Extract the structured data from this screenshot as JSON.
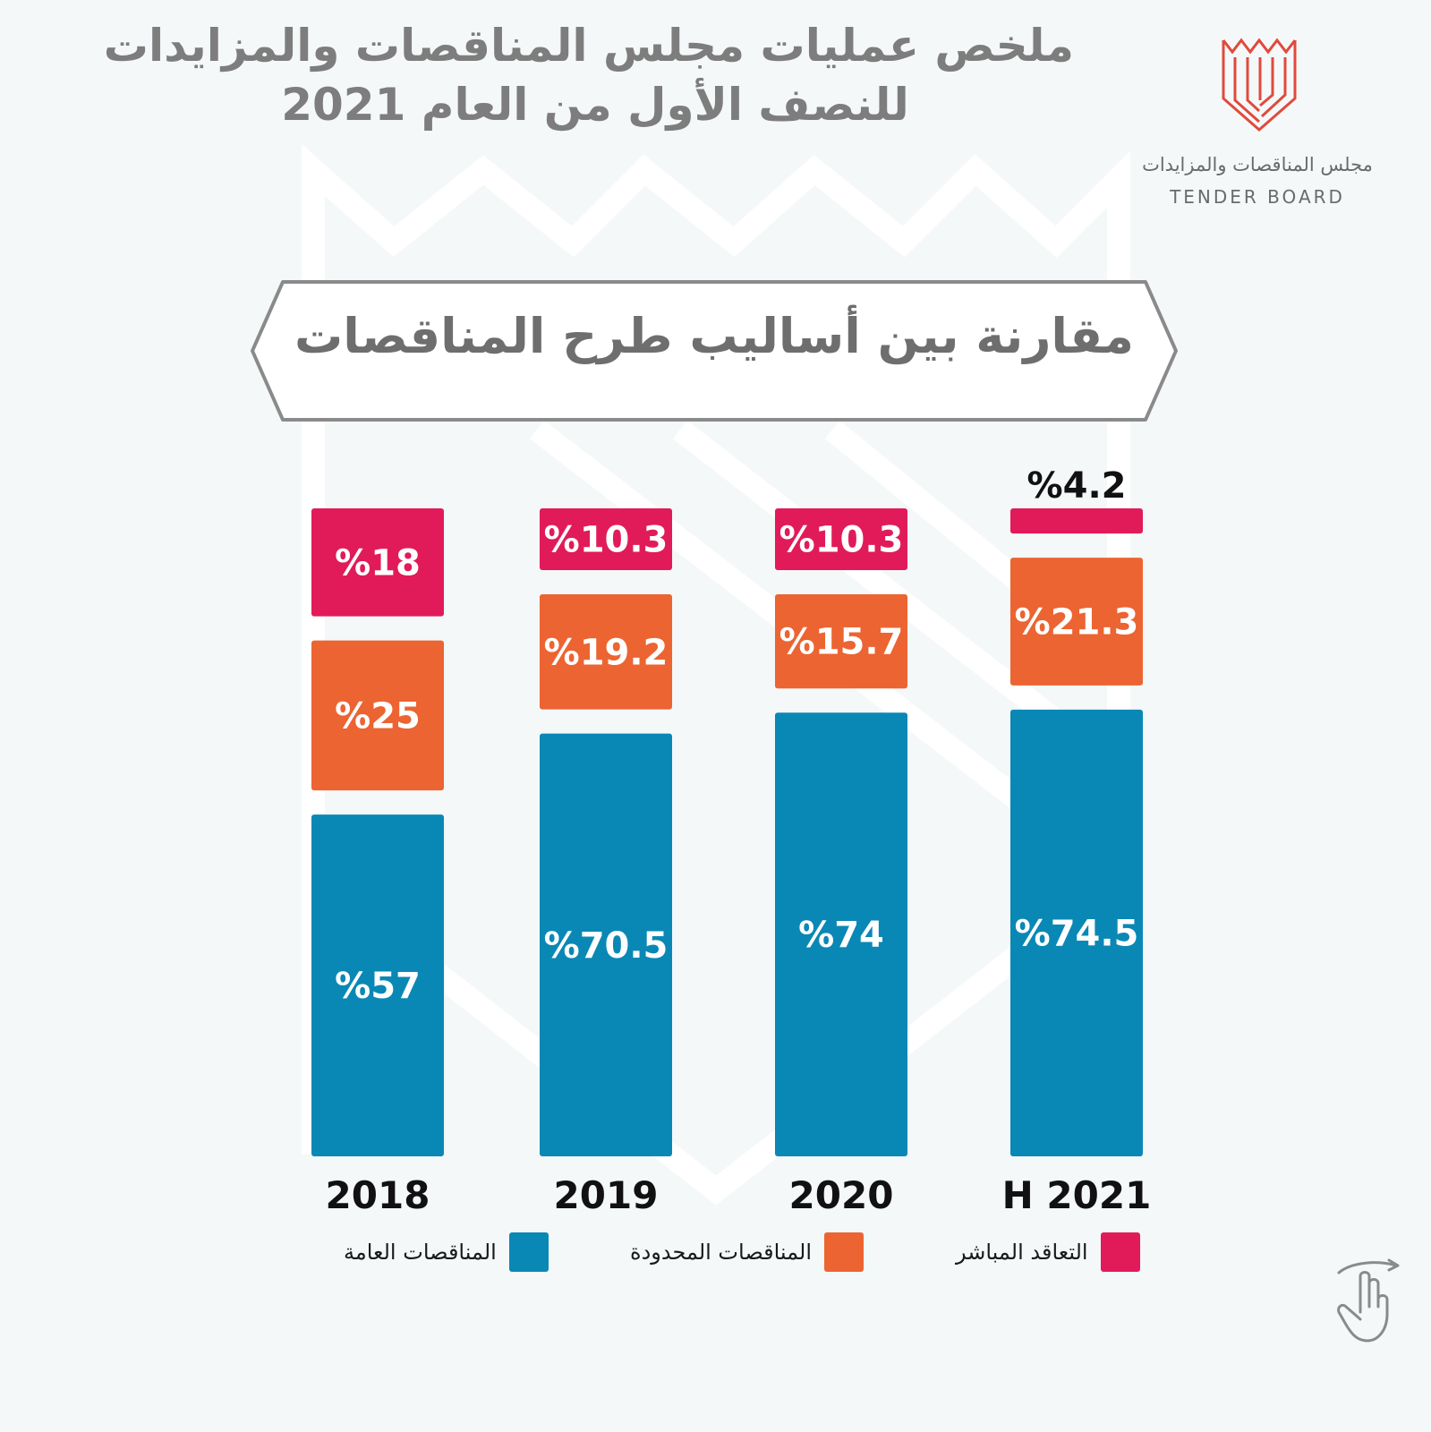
{
  "header": {
    "title_line1": "ملخص عمليات مجلس المناقصات والمزايدات",
    "title_line2": "للنصف الأول من العام 2021"
  },
  "logo": {
    "arabic_name": "مجلس المناقصات والمزايدات",
    "english_name": "TENDER BOARD"
  },
  "banner": {
    "text": "مقارنة بين أساليب طرح المناقصات"
  },
  "colors": {
    "background": "#f4f8f9",
    "general_tenders": "#0a88b5",
    "limited_tenders": "#ec6431",
    "direct_contracting": "#e11b5a",
    "logo": "#e04a3c"
  },
  "chart_data": {
    "type": "bar",
    "stacked": true,
    "categories": [
      "2018",
      "2019",
      "2020",
      "H 2021"
    ],
    "series": [
      {
        "name": "المناقصات العامة",
        "values": [
          57,
          70.5,
          74,
          74.5
        ],
        "labels": [
          "%57",
          "%70.5",
          "%74",
          "%74.5"
        ],
        "color": "#0a88b5"
      },
      {
        "name": "المناقصات المحدودة",
        "values": [
          25,
          19.2,
          15.7,
          21.3
        ],
        "labels": [
          "%25",
          "%19.2",
          "%15.7",
          "%21.3"
        ],
        "color": "#ec6431"
      },
      {
        "name": "التعاقد المباشر",
        "values": [
          18,
          10.3,
          10.3,
          4.2
        ],
        "labels": [
          "%18",
          "%10.3",
          "%10.3",
          "%4.2"
        ],
        "color": "#e11b5a"
      }
    ],
    "title": "مقارنة بين أساليب طرح المناقصات",
    "legend_position": "bottom",
    "grid": false
  },
  "icons": {
    "logo": "tender-board-logo-icon",
    "swipe": "swipe-hand-icon"
  }
}
